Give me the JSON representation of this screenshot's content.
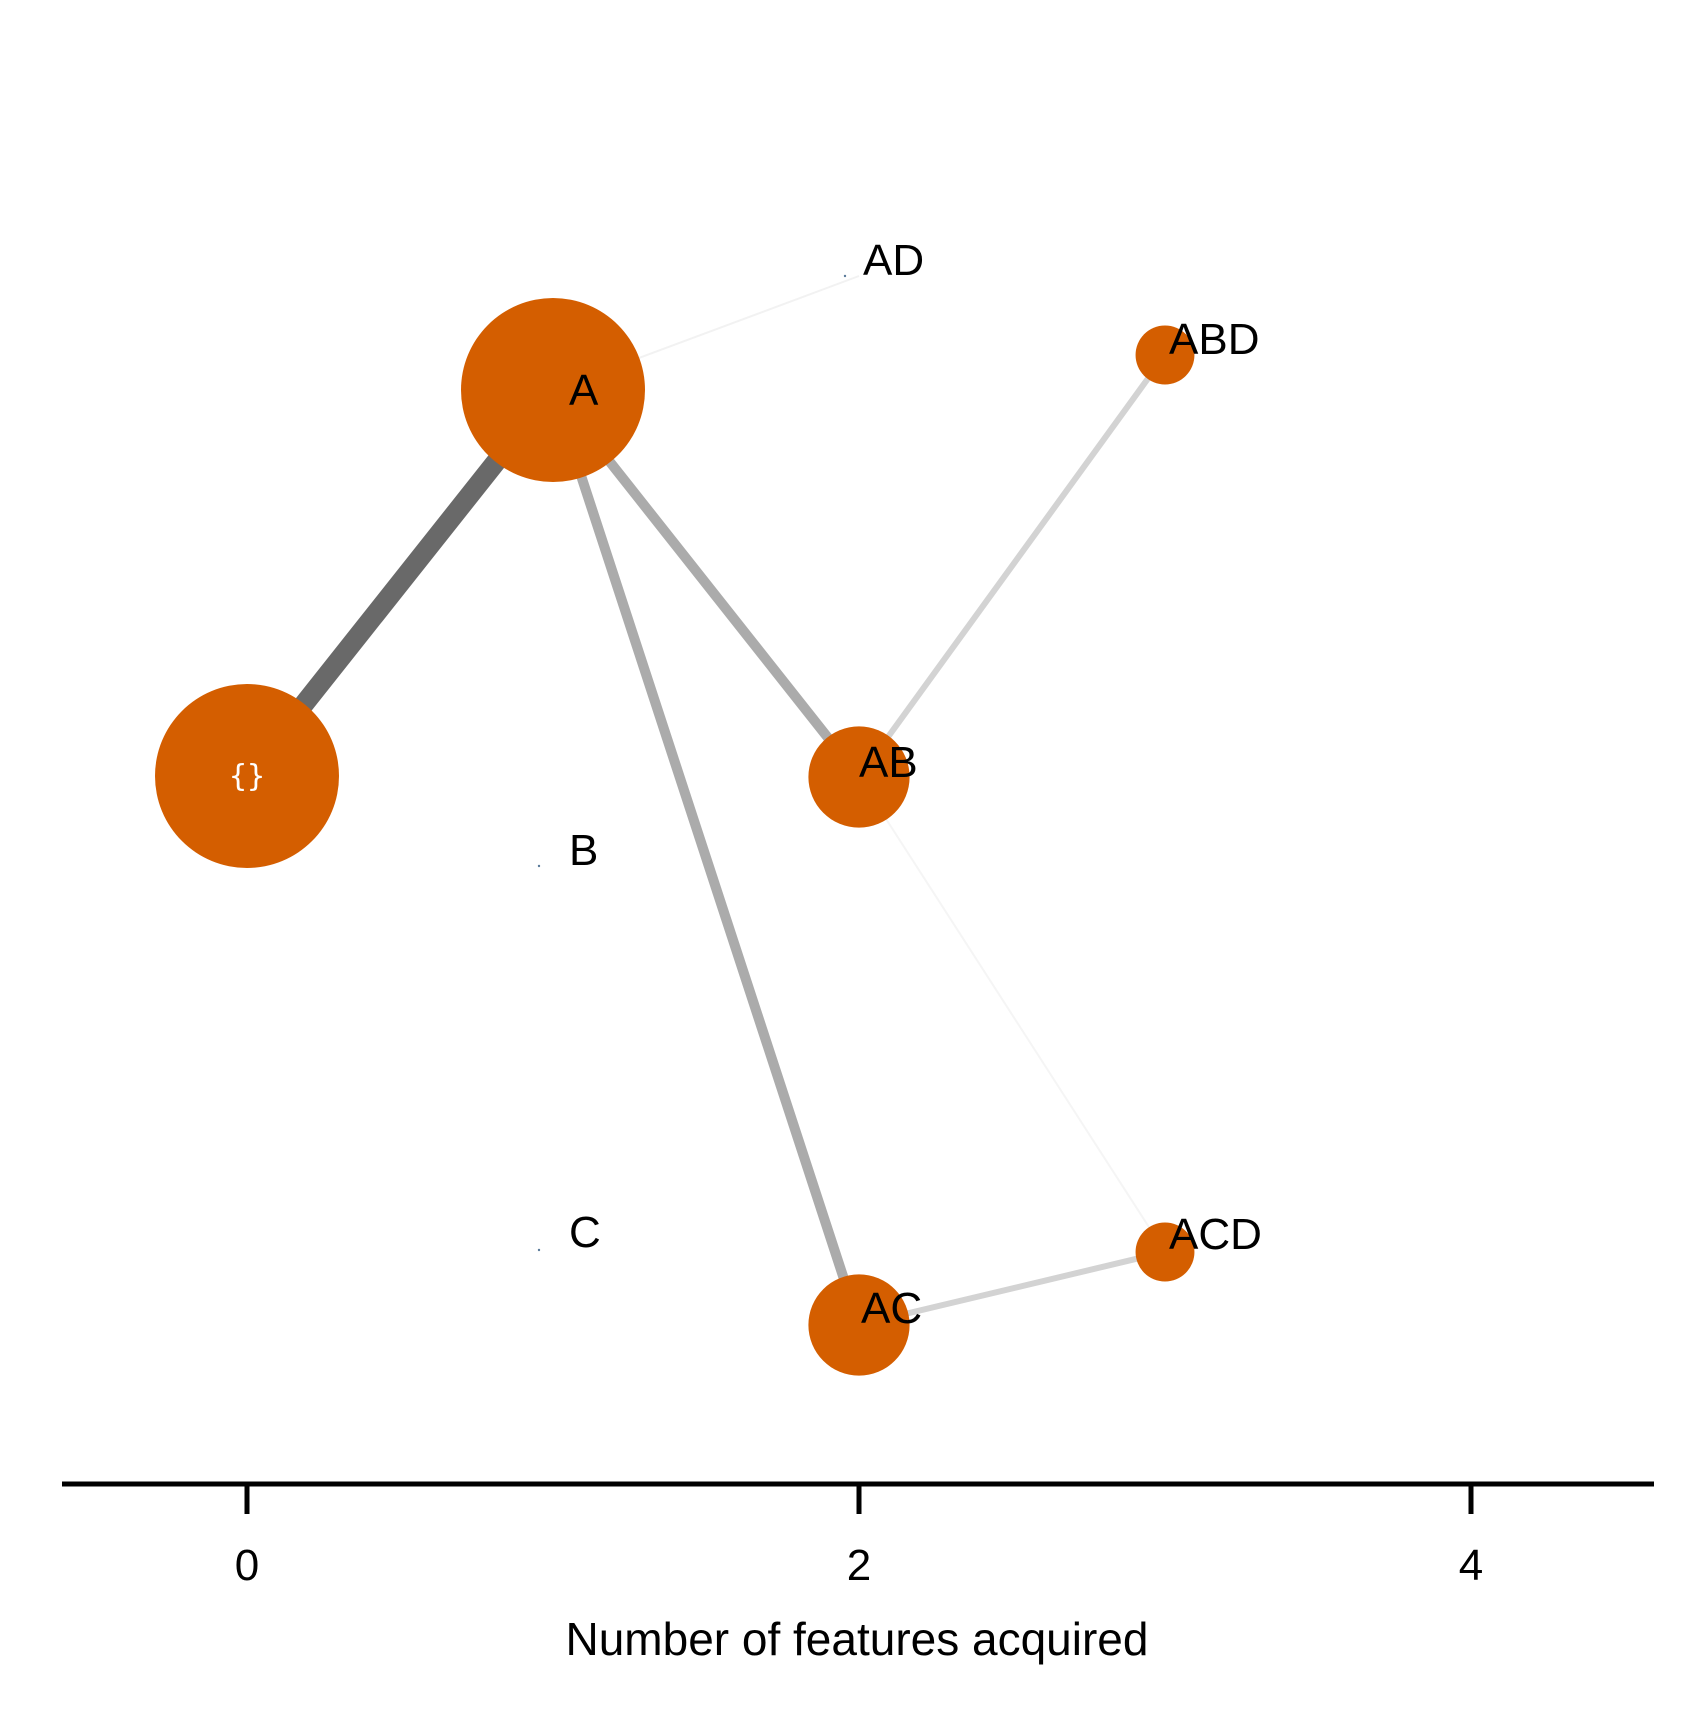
{
  "chart_data": {
    "type": "network",
    "x_axis": {
      "label": "Number of features acquired",
      "ticks": [
        0,
        2,
        4
      ],
      "range": [
        -0.6,
        4.6
      ]
    },
    "colors": {
      "node_fill": "#D45E00",
      "root_label_color": "#ffffff",
      "label_color": "#000000"
    },
    "nodes": [
      {
        "id": "{}",
        "label": "{}",
        "features": 0,
        "size": 1.0
      },
      {
        "id": "A",
        "label": "A",
        "features": 1,
        "size": 1.0
      },
      {
        "id": "B",
        "label": "B",
        "features": 1,
        "size": 0.0
      },
      {
        "id": "C",
        "label": "C",
        "features": 1,
        "size": 0.0
      },
      {
        "id": "AD",
        "label": "AD",
        "features": 2,
        "size": 0.0
      },
      {
        "id": "AB",
        "label": "AB",
        "features": 2,
        "size": 0.55
      },
      {
        "id": "AC",
        "label": "AC",
        "features": 2,
        "size": 0.55
      },
      {
        "id": "ABD",
        "label": "ABD",
        "features": 3,
        "size": 0.32
      },
      {
        "id": "ACD",
        "label": "ACD",
        "features": 3,
        "size": 0.32
      }
    ],
    "edges": [
      {
        "from": "{}",
        "to": "A",
        "weight": 1.0,
        "color": "#696969"
      },
      {
        "from": "A",
        "to": "AB",
        "weight": 0.5,
        "color": "#ABABAB"
      },
      {
        "from": "A",
        "to": "AC",
        "weight": 0.5,
        "color": "#ABABAB"
      },
      {
        "from": "AB",
        "to": "ABD",
        "weight": 0.3,
        "color": "#D3D3D3"
      },
      {
        "from": "AC",
        "to": "ACD",
        "weight": 0.3,
        "color": "#D3D3D3"
      },
      {
        "from": "A",
        "to": "AD",
        "weight": 0.02,
        "color": "#F2F2F2"
      },
      {
        "from": "AB",
        "to": "ACD",
        "weight": 0.02,
        "color": "#F5F5F5"
      }
    ]
  }
}
